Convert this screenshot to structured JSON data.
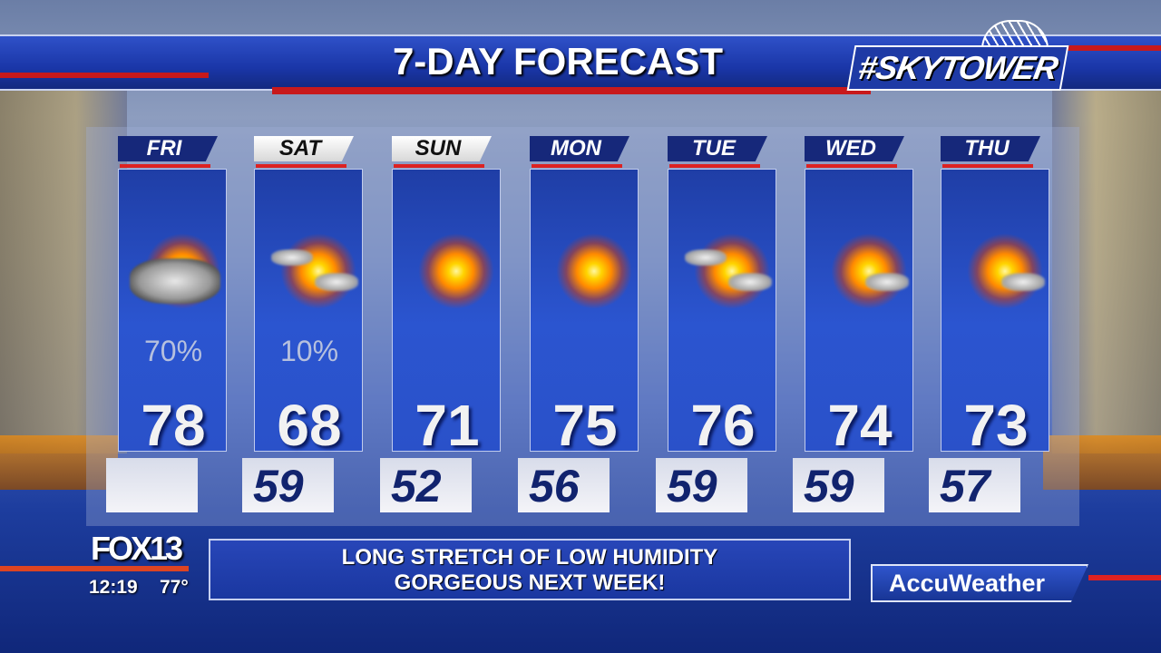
{
  "header": {
    "title": "7-DAY FORECAST",
    "logo_text": "#SKYTOWER"
  },
  "days": [
    {
      "day": "FRI",
      "tab_style": "dark",
      "icon": "partly-cloudy-icon",
      "precip": "70%",
      "high": "78",
      "low": ""
    },
    {
      "day": "SAT",
      "tab_style": "light",
      "icon": "mostly-sunny-icon",
      "precip": "10%",
      "high": "68",
      "low": "59"
    },
    {
      "day": "SUN",
      "tab_style": "light",
      "icon": "sunny-icon",
      "precip": "",
      "high": "71",
      "low": "52"
    },
    {
      "day": "MON",
      "tab_style": "dark",
      "icon": "sunny-icon",
      "precip": "",
      "high": "75",
      "low": "56"
    },
    {
      "day": "TUE",
      "tab_style": "dark",
      "icon": "mostly-sunny-icon",
      "precip": "",
      "high": "76",
      "low": "59"
    },
    {
      "day": "WED",
      "tab_style": "dark",
      "icon": "mostly-sunny-icon",
      "precip": "",
      "high": "74",
      "low": "59"
    },
    {
      "day": "THU",
      "tab_style": "dark",
      "icon": "mostly-sunny-icon",
      "precip": "",
      "high": "73",
      "low": "57"
    }
  ],
  "station": {
    "logo": "FOX13",
    "time": "12:19",
    "temperature": "77°"
  },
  "ticker": {
    "line1": "LONG STRETCH OF LOW HUMIDITY",
    "line2": "GORGEOUS NEXT WEEK!"
  },
  "sponsor": "AccuWeather",
  "colors": {
    "brand_blue": "#1e3aa5",
    "accent_red": "#c8191b",
    "low_temp_text": "#11236e"
  }
}
